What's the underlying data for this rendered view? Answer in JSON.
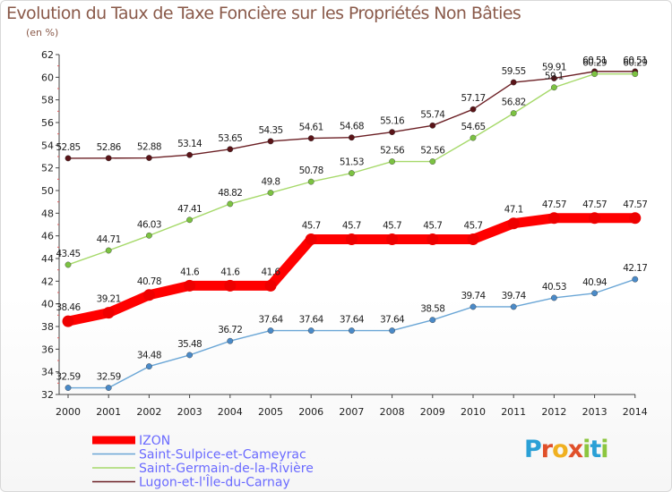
{
  "header": {
    "title": "Evolution du Taux de Taxe Foncière sur les Propriétés Non Bâties",
    "subtitle": "(en %)"
  },
  "logo": {
    "letters": [
      "P",
      "r",
      "o",
      "x",
      "i",
      "t",
      "i"
    ],
    "colors": [
      "#2aa0d6",
      "#e0502a",
      "#f0b020",
      "#e0502a",
      "#8cc63f",
      "#2aa0d6",
      "#8cc63f"
    ]
  },
  "chart_data": {
    "type": "line",
    "title": "Evolution du Taux de Taxe Foncière sur les Propriétés Non Bâties",
    "ylabel": "(en %)",
    "xlabel": "",
    "ylim": [
      32,
      62
    ],
    "yticks": [
      32,
      34,
      36,
      38,
      40,
      42,
      44,
      46,
      48,
      50,
      52,
      54,
      56,
      58,
      60,
      62
    ],
    "categories": [
      "2000",
      "2001",
      "2002",
      "2003",
      "2004",
      "2005",
      "2006",
      "2007",
      "2008",
      "2009",
      "2010",
      "2011",
      "2012",
      "2013",
      "2014"
    ],
    "series": [
      {
        "name": "Lugon-et-l'Île-du-Carnay",
        "color": "#6b1f24",
        "marker": "#5a1418",
        "bold": false,
        "values": [
          52.85,
          52.86,
          52.88,
          53.14,
          53.65,
          54.35,
          54.61,
          54.68,
          55.16,
          55.74,
          57.17,
          59.55,
          59.91,
          60.51,
          60.51
        ],
        "labels": [
          "52.85",
          "52.86",
          "52.88",
          "53.14",
          "53.65",
          "54.35",
          "54.61",
          "54.68",
          "55.16",
          "55.74",
          "57.17",
          "59.55",
          "59.91",
          "60.51",
          "60.51"
        ]
      },
      {
        "name": "Saint-Germain-de-la-Rivière",
        "color": "#a6d96a",
        "marker": "#7cc242",
        "bold": false,
        "values": [
          43.45,
          44.71,
          46.03,
          47.41,
          48.82,
          49.8,
          50.78,
          51.53,
          52.56,
          52.56,
          54.65,
          56.82,
          59.1,
          60.29,
          60.29
        ],
        "labels": [
          "43.45",
          "44.71",
          "46.03",
          "47.41",
          "48.82",
          "49.8",
          "50.78",
          "51.53",
          "52.56",
          "52.56",
          "54.65",
          "56.82",
          "59.1",
          "60.29",
          "60.29"
        ]
      },
      {
        "name": "IZON",
        "color": "#ff0000",
        "marker": "#ee0000",
        "bold": true,
        "values": [
          38.46,
          39.21,
          40.78,
          41.6,
          41.6,
          41.6,
          45.7,
          45.7,
          45.7,
          45.7,
          45.7,
          47.1,
          47.57,
          47.57,
          47.57
        ],
        "labels": [
          "38.46",
          "39.21",
          "40.78",
          "41.6",
          "41.6",
          "41.6",
          "45.7",
          "45.7",
          "45.7",
          "45.7",
          "45.7",
          "47.1",
          "47.57",
          "47.57",
          "47.57"
        ]
      },
      {
        "name": "Saint-Sulpice-et-Cameyrac",
        "color": "#6aa6d6",
        "marker": "#4a8ac8",
        "bold": false,
        "values": [
          32.59,
          32.59,
          34.48,
          35.48,
          36.72,
          37.64,
          37.64,
          37.64,
          37.64,
          38.58,
          39.74,
          39.74,
          40.53,
          40.94,
          42.17
        ],
        "labels": [
          "32.59",
          "32.59",
          "34.48",
          "35.48",
          "36.72",
          "37.64",
          "37.64",
          "37.64",
          "37.64",
          "38.58",
          "39.74",
          "39.74",
          "40.53",
          "40.94",
          "42.17"
        ]
      }
    ],
    "legend": [
      {
        "name": "IZON",
        "color": "#ff0000",
        "bold": true
      },
      {
        "name": "Saint-Sulpice-et-Cameyrac",
        "color": "#6aa6d6",
        "bold": false
      },
      {
        "name": "Saint-Germain-de-la-Rivière",
        "color": "#a6d96a",
        "bold": false
      },
      {
        "name": "Lugon-et-l'Île-du-Carnay",
        "color": "#6b1f24",
        "bold": false
      }
    ],
    "legend_text_color": "#6a6aff",
    "grid": false
  }
}
